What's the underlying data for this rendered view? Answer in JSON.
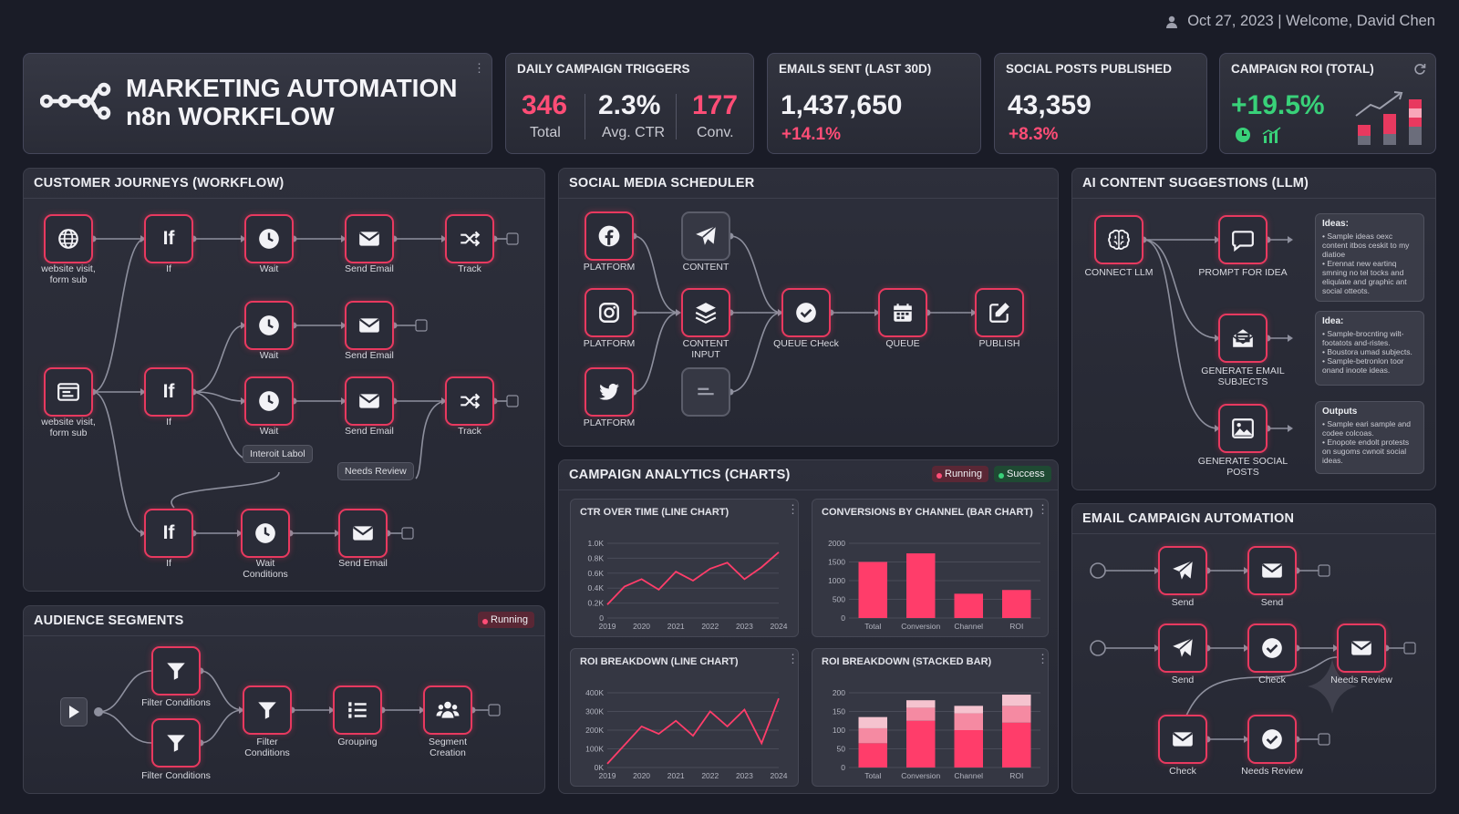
{
  "topbar": {
    "text": "Oct 27, 2023 | Welcome, David Chen",
    "icon": "user-icon"
  },
  "header": {
    "title_line1": "MARKETING AUTOMATION",
    "title_line2": "n8n WORKFLOW",
    "logo": "n8n-logo-icon"
  },
  "kpis": {
    "triggers": {
      "title": "DAILY CAMPAIGN TRIGGERS",
      "total": "346",
      "total_label": "Total",
      "ctr": "2.3%",
      "ctr_label": "Avg. CTR",
      "conv": "177",
      "conv_label": "Conv."
    },
    "emails": {
      "title": "EMAILS SENT (LAST 30D)",
      "value": "1,437,650",
      "change": "+14.1%"
    },
    "social": {
      "title": "SOCIAL POSTS PUBLISHED",
      "value": "43,359",
      "change": "+8.3%"
    },
    "roi": {
      "title": "CAMPAIGN ROI (TOTAL)",
      "value": "+19.5%",
      "refresh": "refresh-icon"
    }
  },
  "journeys": {
    "title": "CUSTOMER JOURNEYS (WORKFLOW)",
    "labels": {
      "trigger1": "website visit,\nform sub",
      "trigger2": "website visit,\nform sub",
      "if": "If",
      "wait": "Wait",
      "send": "Send Email",
      "track": "Track",
      "wait_cond": "Wait\nConditions"
    },
    "tag_interoit": "Interoit Labol",
    "tag_review": "Needs Review"
  },
  "audience": {
    "title": "AUDIENCE SEGMENTS",
    "status": "Running",
    "labels": {
      "filter1": "Filter Conditions",
      "filter2": "Filter Conditions",
      "filter3": "Filter\nConditions",
      "grouping": "Grouping",
      "segment": "Segment\nCreation"
    }
  },
  "social": {
    "title": "SOCIAL MEDIA SCHEDULER",
    "labels": {
      "platform": "PLATFORM",
      "content": "CONTENT",
      "content_input": "CONTENT\nINPUT",
      "queue_check": "QUEUE CHeck",
      "queue": "QUEUE",
      "publish": "PUBLISH"
    }
  },
  "analytics": {
    "title": "CAMPAIGN ANALYTICS (CHARTS)",
    "status_running": "Running",
    "status_success": "Success"
  },
  "chart_data": [
    {
      "type": "line",
      "title": "CTR OVER TIME (LINE CHART)",
      "x": [
        2019,
        2020,
        2021,
        2022,
        2023,
        2024
      ],
      "yticks": [
        "0",
        "0.2K",
        "0.4K",
        "0.6K",
        "0.8K",
        "1.0K"
      ],
      "ylim": [
        0,
        1000
      ],
      "series": [
        {
          "x": [
            2019,
            2019.5,
            2020,
            2020.5,
            2021,
            2021.5,
            2022,
            2022.5,
            2023,
            2023.5,
            2024
          ],
          "values": [
            180,
            420,
            520,
            380,
            620,
            500,
            660,
            740,
            520,
            680,
            880
          ]
        }
      ]
    },
    {
      "type": "bar",
      "title": "CONVERSIONS BY CHANNEL (BAR CHART)",
      "categories": [
        "Total",
        "Conversion",
        "Channel",
        "ROI"
      ],
      "values": [
        1500,
        1730,
        650,
        750
      ],
      "yticks": [
        "0",
        "500",
        "1000",
        "1500",
        "2000"
      ],
      "ylim": [
        0,
        2000
      ]
    },
    {
      "type": "line",
      "title": "ROI BREAKDOWN (LINE CHART)",
      "x": [
        2019,
        2020,
        2021,
        2022,
        2023,
        2024
      ],
      "yticks": [
        "0K",
        "100K",
        "200K",
        "300K",
        "400K"
      ],
      "ylim": [
        0,
        400000
      ],
      "series": [
        {
          "x": [
            2019,
            2020,
            2020.5,
            2021,
            2021.5,
            2022,
            2022.5,
            2023,
            2023.5,
            2024
          ],
          "values": [
            20000,
            220000,
            180000,
            250000,
            170000,
            300000,
            220000,
            310000,
            130000,
            370000
          ]
        }
      ]
    },
    {
      "type": "bar",
      "title": "ROI BREAKDOWN (STACKED BAR)",
      "categories": [
        "Total",
        "Conversion",
        "Channel",
        "ROI"
      ],
      "yticks": [
        "0",
        "50",
        "100",
        "150",
        "200"
      ],
      "ylim": [
        0,
        200
      ],
      "series": [
        {
          "values": [
            65,
            125,
            100,
            120
          ]
        },
        {
          "values": [
            40,
            35,
            45,
            45
          ]
        },
        {
          "values": [
            30,
            20,
            20,
            30
          ]
        }
      ]
    }
  ],
  "ai": {
    "title": "AI CONTENT SUGGESTIONS (LLM)",
    "labels": {
      "llm": "CONNECT LLM",
      "prompt": "PROMPT FOR IDEA",
      "email": "GENERATE EMAIL\nSUBJECTS",
      "social": "GENERATE SOCIAL\nPOSTS"
    },
    "cards": [
      {
        "title": "Ideas:",
        "items": [
          "Sample ideas oexc content itbos ceskit to my diatioe",
          "Erennat new eartinq smning no tel tocks and eliqulate and graphic ant social otteots."
        ]
      },
      {
        "title": "Idea:",
        "items": [
          "Sample-brocnting wilt-footatots and-ristes.",
          "Boustora umad subjects.",
          "Sample-betronlon toor onand inoote ideas."
        ]
      },
      {
        "title": "Outputs",
        "items": [
          "Sample eari sample and codee colcoas.",
          "Enopote endolt protests on sugoms cwnoit social ideas."
        ]
      }
    ]
  },
  "email": {
    "title": "EMAIL CAMPAIGN AUTOMATION",
    "labels": {
      "send": "Send",
      "check": "Check",
      "review": "Needs Review"
    }
  }
}
